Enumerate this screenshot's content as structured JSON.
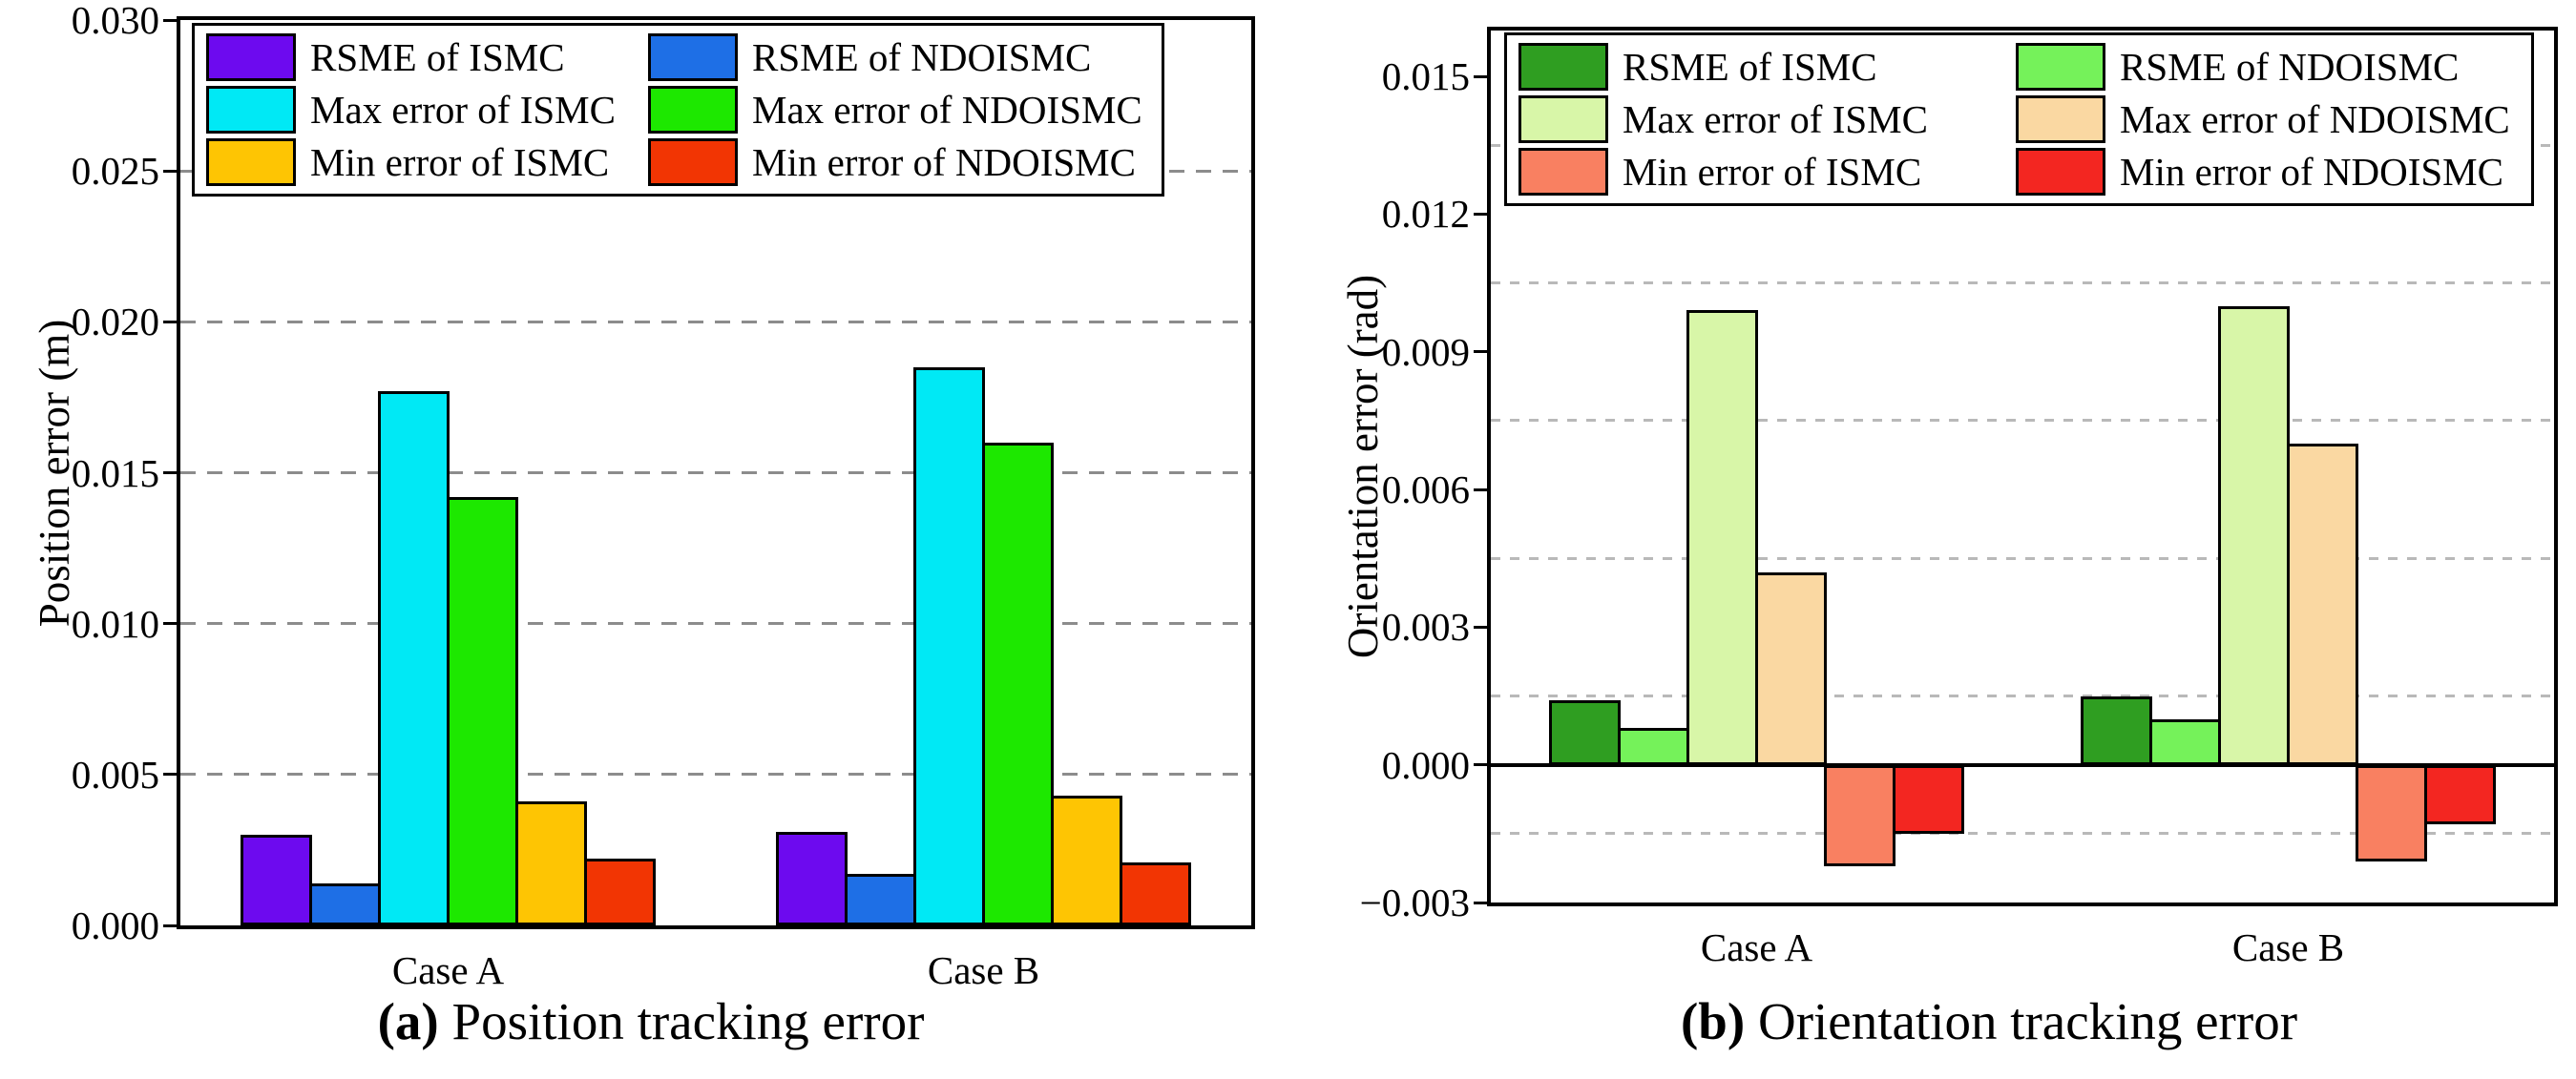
{
  "figure": {
    "background": "#ffffff",
    "axis_color": "#000000"
  },
  "chart_data": [
    {
      "type": "bar",
      "panel": "a",
      "caption_label": "(a)",
      "caption_text": " Position tracking error",
      "ylabel": "Position error (m)",
      "xlabel": "",
      "categories": [
        "Case A",
        "Case B"
      ],
      "ylim": [
        0,
        0.03
      ],
      "ytick_values": [
        0,
        0.005,
        0.01,
        0.015,
        0.02,
        0.025,
        0.03
      ],
      "ytick_labels": [
        "0.000",
        "0.005",
        "0.010",
        "0.015",
        "0.020",
        "0.025",
        "0.030"
      ],
      "gridline_values": [
        0.005,
        0.01,
        0.015,
        0.02,
        0.025
      ],
      "grid": "dashed",
      "legend_position": "top-left",
      "legend_columns": 2,
      "series": [
        {
          "name": "RSME of ISMC",
          "color": "#6D0AEF",
          "values": [
            0.003,
            0.0031
          ]
        },
        {
          "name": "RSME of NDOISMC",
          "color": "#1E6FE6",
          "values": [
            0.0014,
            0.0017
          ]
        },
        {
          "name": "Max error of ISMC",
          "color": "#00E9F5",
          "values": [
            0.0177,
            0.0185
          ]
        },
        {
          "name": "Max error of NDOISMC",
          "color": "#1DE800",
          "values": [
            0.0142,
            0.016
          ]
        },
        {
          "name": "Min error of ISMC",
          "color": "#FEC503",
          "values": [
            0.0041,
            0.0043
          ]
        },
        {
          "name": "Min error of NDOISMC",
          "color": "#F23503",
          "values": [
            0.0022,
            0.0021
          ]
        }
      ]
    },
    {
      "type": "bar",
      "panel": "b",
      "caption_label": "(b)",
      "caption_text": " Orientation tracking error",
      "ylabel": "Orientation error (rad)",
      "xlabel": "",
      "categories": [
        "Case A",
        "Case B"
      ],
      "ylim": [
        -0.003,
        0.016
      ],
      "ytick_values": [
        -0.003,
        0,
        0.003,
        0.006,
        0.009,
        0.012,
        0.015
      ],
      "ytick_labels": [
        "−0.003",
        "0.000",
        "0.003",
        "0.006",
        "0.009",
        "0.012",
        "0.015"
      ],
      "gridline_values": [
        -0.0015,
        0.0015,
        0.0045,
        0.0075,
        0.0105,
        0.0135
      ],
      "grid": "dashed",
      "zero_line": 0,
      "legend_position": "top-left",
      "legend_columns": 2,
      "series": [
        {
          "name": "RSME of ISMC",
          "color": "#2F9E21",
          "values": [
            0.0014,
            0.0015
          ]
        },
        {
          "name": "RSME of NDOISMC",
          "color": "#75F25A",
          "values": [
            0.0008,
            0.001
          ]
        },
        {
          "name": "Max error of ISMC",
          "color": "#D8F6A8",
          "values": [
            0.0099,
            0.01
          ]
        },
        {
          "name": "Max error of NDOISMC",
          "color": "#FAD8A2",
          "values": [
            0.0042,
            0.007
          ]
        },
        {
          "name": "Min error of ISMC",
          "color": "#F98061",
          "values": [
            -0.0022,
            -0.0021
          ]
        },
        {
          "name": "Min error of NDOISMC",
          "color": "#F32621",
          "values": [
            -0.0015,
            -0.0013
          ]
        }
      ]
    }
  ]
}
